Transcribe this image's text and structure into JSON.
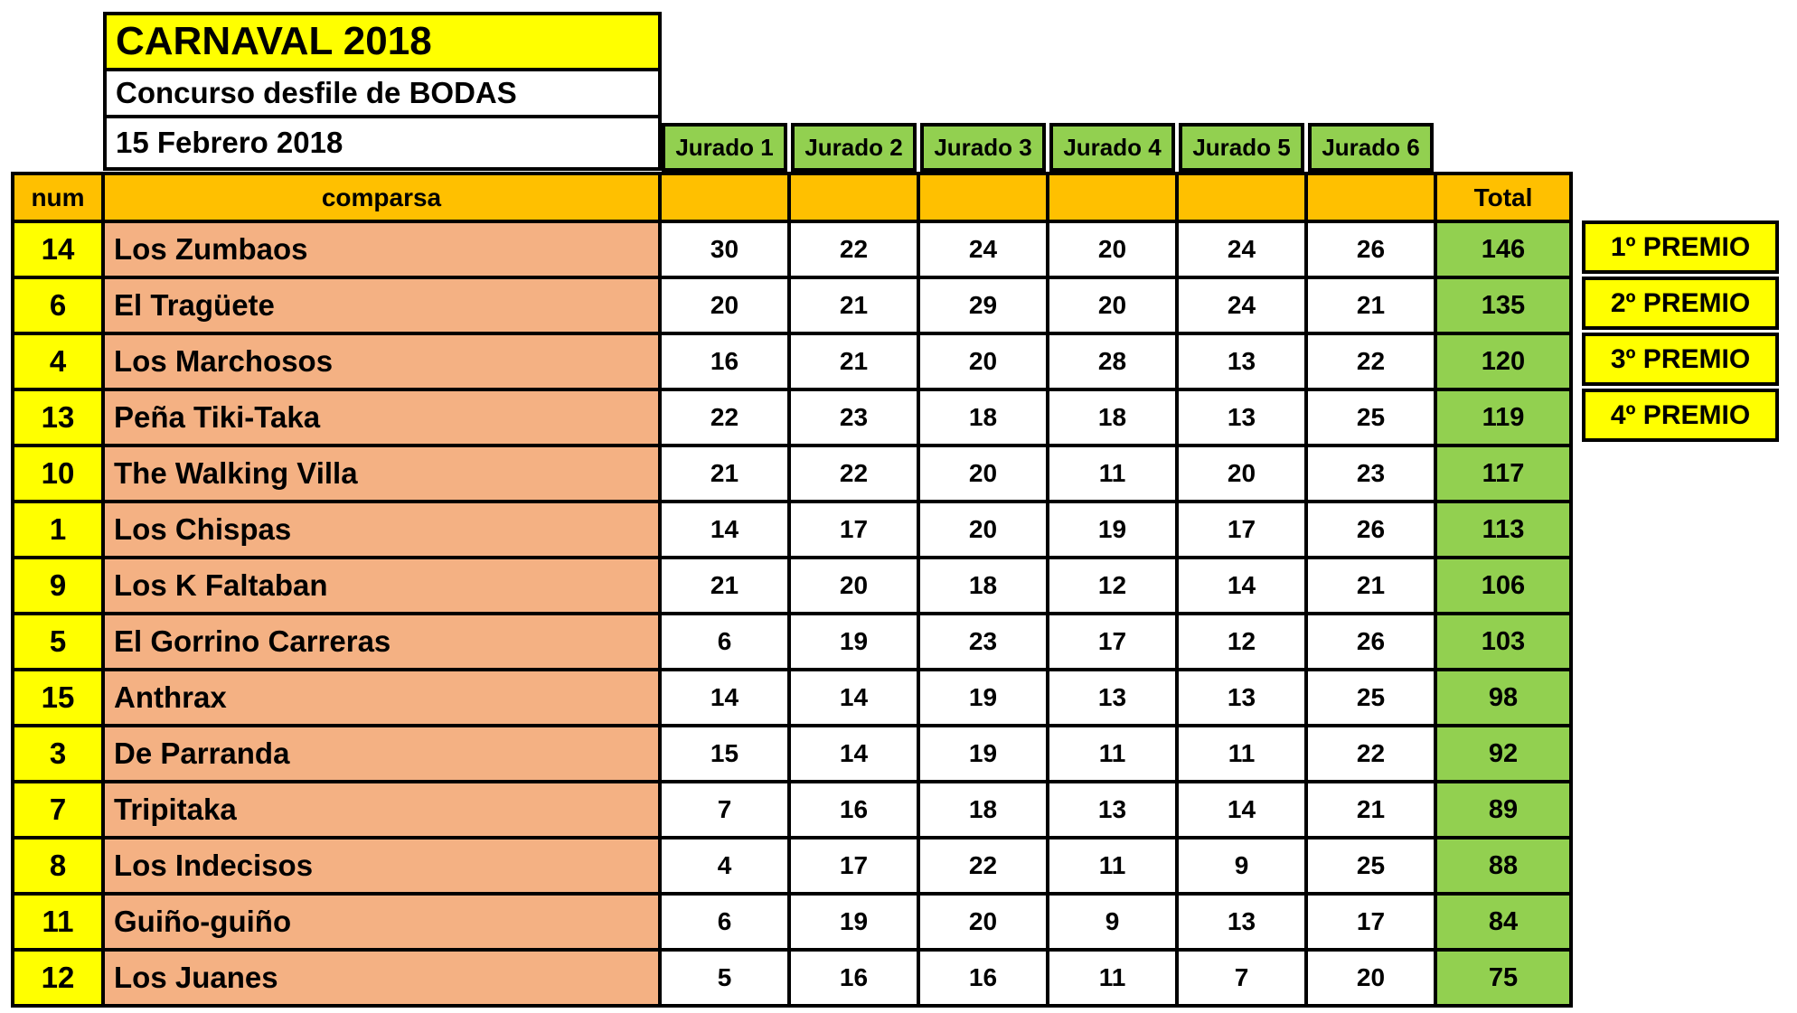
{
  "header": {
    "title": "CARNAVAL 2018",
    "subtitle": "Concurso desfile de BODAS",
    "date": "15 Febrero 2018"
  },
  "table": {
    "col_headers": {
      "num": "num",
      "comparsa": "comparsa",
      "total": "Total"
    },
    "jurado_headers": [
      "Jurado 1",
      "Jurado 2",
      "Jurado 3",
      "Jurado 4",
      "Jurado 5",
      "Jurado 6"
    ],
    "rows": [
      {
        "num": "14",
        "name": "Los Zumbaos",
        "scores": [
          30,
          22,
          24,
          20,
          24,
          26
        ],
        "total": 146,
        "premio": "1º PREMIO"
      },
      {
        "num": "6",
        "name": "El Tragüete",
        "scores": [
          20,
          21,
          29,
          20,
          24,
          21
        ],
        "total": 135,
        "premio": "2º PREMIO"
      },
      {
        "num": "4",
        "name": "Los Marchosos",
        "scores": [
          16,
          21,
          20,
          28,
          13,
          22
        ],
        "total": 120,
        "premio": "3º PREMIO"
      },
      {
        "num": "13",
        "name": "Peña Tiki-Taka",
        "scores": [
          22,
          23,
          18,
          18,
          13,
          25
        ],
        "total": 119,
        "premio": "4º PREMIO"
      },
      {
        "num": "10",
        "name": "The Walking Villa",
        "scores": [
          21,
          22,
          20,
          11,
          20,
          23
        ],
        "total": 117
      },
      {
        "num": "1",
        "name": "Los Chispas",
        "scores": [
          14,
          17,
          20,
          19,
          17,
          26
        ],
        "total": 113
      },
      {
        "num": "9",
        "name": "Los K Faltaban",
        "scores": [
          21,
          20,
          18,
          12,
          14,
          21
        ],
        "total": 106
      },
      {
        "num": "5",
        "name": "El Gorrino Carreras",
        "scores": [
          6,
          19,
          23,
          17,
          12,
          26
        ],
        "total": 103
      },
      {
        "num": "15",
        "name": "Anthrax",
        "scores": [
          14,
          14,
          19,
          13,
          13,
          25
        ],
        "total": 98
      },
      {
        "num": "3",
        "name": "De Parranda",
        "scores": [
          15,
          14,
          19,
          11,
          11,
          22
        ],
        "total": 92
      },
      {
        "num": "7",
        "name": "Tripitaka",
        "scores": [
          7,
          16,
          18,
          13,
          14,
          21
        ],
        "total": 89
      },
      {
        "num": "8",
        "name": "Los Indecisos",
        "scores": [
          4,
          17,
          22,
          11,
          9,
          25
        ],
        "total": 88
      },
      {
        "num": "11",
        "name": "Guiño-guiño",
        "scores": [
          6,
          19,
          20,
          9,
          13,
          17
        ],
        "total": 84
      },
      {
        "num": "12",
        "name": "Los Juanes",
        "scores": [
          5,
          16,
          16,
          11,
          7,
          20
        ],
        "total": 75
      }
    ]
  },
  "colors": {
    "yellow": "#FFFF00",
    "orange": "#FFC000",
    "salmon": "#F4B183",
    "green": "#92D050",
    "border": "#000000"
  }
}
